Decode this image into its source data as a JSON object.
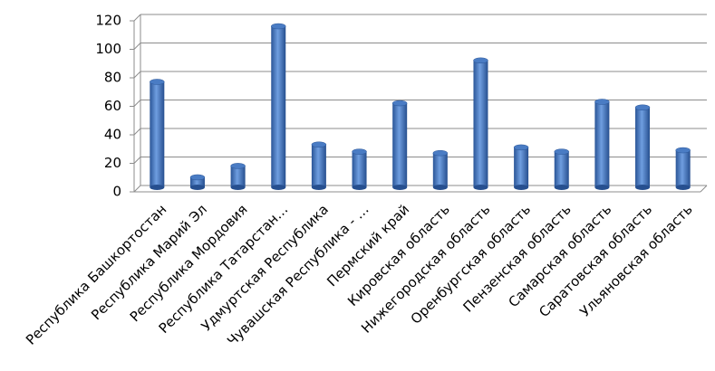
{
  "chart_data": {
    "type": "bar",
    "categories": [
      "Республика Башкортостан",
      "Республика Марий Эл",
      "Республика Мордовия",
      "Республика Татарстан…",
      "Удмуртская Республика",
      "Чувашская Республика - …",
      "Пермский край",
      "Кировская область",
      "Нижегородская область",
      "Оренбургская область",
      "Пензенская область",
      "Самарская область",
      "Саратовская область",
      "Ульяновская область"
    ],
    "values": [
      74,
      7,
      15,
      113,
      30,
      25,
      59,
      24,
      89,
      28,
      25,
      60,
      56,
      26
    ],
    "color": "#4a7cc4",
    "ylim": [
      0,
      120
    ],
    "yticks": [
      0,
      20,
      40,
      60,
      80,
      100,
      120
    ],
    "grid": true
  }
}
